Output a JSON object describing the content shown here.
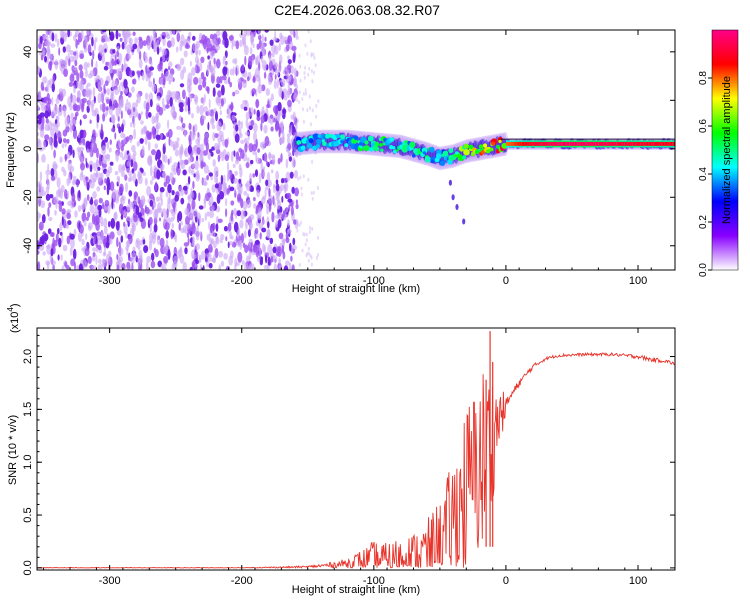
{
  "title": "C2E4.2026.063.08.32.R07",
  "chart_data": [
    {
      "type": "heatmap",
      "xlabel": "Height of straight line (km)",
      "ylabel": "Frequency (Hz)",
      "xlim": [
        -355,
        128
      ],
      "ylim": [
        -50,
        49
      ],
      "xticks": [
        -300,
        -200,
        -100,
        0,
        100
      ],
      "xtick_labels": [
        "-300",
        "-200",
        "-100",
        "0",
        "100"
      ],
      "yticks": [
        -40,
        -20,
        0,
        20,
        40
      ],
      "ytick_labels": [
        "-40",
        "-20",
        "0",
        "20",
        "40"
      ],
      "colorbar": {
        "label": "Normalized spectral amplitude",
        "range": [
          0,
          1
        ],
        "ticks": [
          0,
          0.2,
          0.4,
          0.6,
          0.8
        ],
        "tick_labels": [
          "0.0",
          "0.2",
          "0.4",
          "0.6",
          "0.8"
        ],
        "colors": [
          "#ffffff",
          "#8800ff",
          "#0000ff",
          "#00ffff",
          "#00ff00",
          "#ffff00",
          "#ff0000",
          "#ff0088"
        ]
      },
      "noise_region_x": [
        -355,
        -158
      ],
      "signal_track": {
        "x": [
          -160,
          -140,
          -120,
          -100,
          -80,
          -60,
          -50,
          -40,
          -30,
          -20,
          -10,
          0,
          20,
          40,
          60,
          80,
          100,
          128
        ],
        "freq": [
          2,
          3,
          3,
          2,
          1,
          -2,
          -4,
          -3,
          -1,
          0,
          1,
          2,
          2,
          2,
          2,
          2,
          2,
          2
        ],
        "amplitude": [
          0.4,
          0.45,
          0.45,
          0.5,
          0.45,
          0.45,
          0.4,
          0.5,
          0.6,
          0.7,
          0.75,
          0.8,
          0.9,
          0.95,
          0.95,
          0.92,
          0.9,
          0.88
        ]
      },
      "grid": false
    },
    {
      "type": "line",
      "xlabel": "Height of straight line (km)",
      "ylabel": "SNR (10 * v/v)",
      "y_multiplier_label": "(x10",
      "y_multiplier_exponent": "4",
      "xlim": [
        -355,
        128
      ],
      "ylim": [
        -0.02,
        2.27
      ],
      "xticks": [
        -300,
        -200,
        -100,
        0,
        100
      ],
      "xtick_labels": [
        "-300",
        "-200",
        "-100",
        "0",
        "100"
      ],
      "yticks": [
        0,
        0.5,
        1,
        1.5,
        2
      ],
      "ytick_labels": [
        "0.0",
        "0.5",
        "1.0",
        "1.5",
        "2.0"
      ],
      "line_color": "#e8332a",
      "envelope": {
        "x": [
          -355,
          -200,
          -150,
          -130,
          -110,
          -100,
          -90,
          -80,
          -70,
          -60,
          -50,
          -45,
          -40,
          -35,
          -30,
          -25,
          -20,
          -15,
          -10,
          -5,
          0,
          5,
          10,
          20,
          30,
          40,
          60,
          80,
          100,
          110,
          120,
          128
        ],
        "base": [
          0,
          0,
          0.01,
          0.03,
          0.06,
          0.08,
          0.1,
          0.12,
          0.15,
          0.18,
          0.25,
          0.35,
          0.5,
          0.65,
          0.8,
          0.95,
          1.05,
          1.15,
          1.3,
          1.45,
          1.55,
          1.65,
          1.75,
          1.9,
          1.98,
          2.01,
          2.02,
          2.02,
          2.0,
          1.97,
          1.96,
          1.93
        ],
        "spread": [
          0,
          0,
          0.01,
          0.05,
          0.12,
          0.2,
          0.15,
          0.2,
          0.2,
          0.3,
          0.45,
          0.55,
          0.6,
          0.75,
          0.85,
          0.8,
          0.9,
          0.95,
          0.6,
          0.3,
          0.1,
          0.08,
          0.06,
          0.04,
          0.02,
          0.02,
          0.02,
          0.02,
          0.03,
          0.03,
          0.03,
          0.02
        ],
        "spikes": [
          {
            "x": -12,
            "y": 2.24
          },
          {
            "x": -10,
            "y": 1.95
          },
          {
            "x": -15,
            "y": 1.78
          }
        ]
      }
    }
  ]
}
